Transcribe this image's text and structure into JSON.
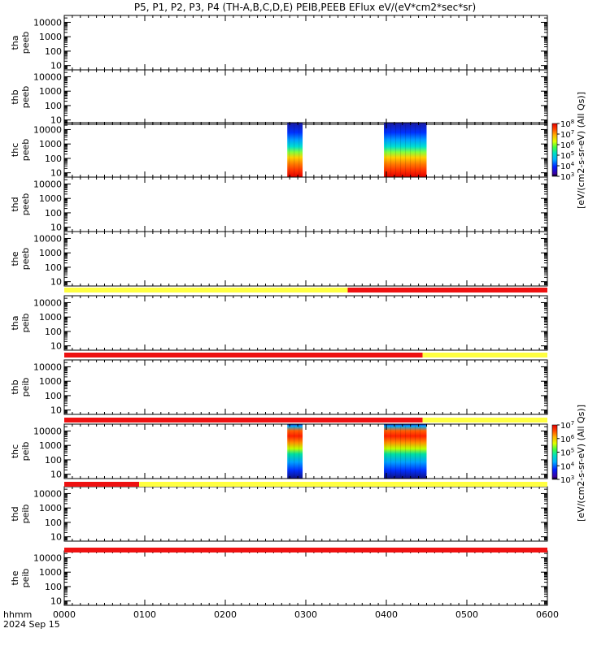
{
  "chart_data": {
    "type": "heatmap",
    "title": "P5, P1, P2, P3, P4 (TH-A,B,C,D,E) PEIB,PEEB EFlux eV/(eV*cm2*sec*sr)",
    "x": {
      "label_line1": "hhmm",
      "label_line2": "2024 Sep 15",
      "ticks": [
        "0000",
        "0100",
        "0200",
        "0300",
        "0400",
        "0500",
        "0600"
      ],
      "range_hours": [
        0,
        6
      ]
    },
    "y": {
      "scale": "log",
      "range_eV": [
        5,
        30000
      ],
      "ticks": [
        "10",
        "100",
        "1000",
        "10000"
      ]
    },
    "panels": [
      {
        "label1": "tha",
        "label2": "peeb",
        "coverage": []
      },
      {
        "label1": "thb",
        "label2": "peeb",
        "coverage": []
      },
      {
        "label1": "thc",
        "label2": "peeb",
        "coverage": [
          [
            2.77,
            2.96
          ],
          [
            3.97,
            4.5
          ]
        ],
        "spectrum": "electron"
      },
      {
        "label1": "thd",
        "label2": "peeb",
        "coverage": []
      },
      {
        "label1": "the",
        "label2": "peeb",
        "coverage": []
      },
      {
        "label1": "tha",
        "label2": "peib",
        "coverage": []
      },
      {
        "label1": "thb",
        "label2": "peib",
        "coverage": []
      },
      {
        "label1": "thc",
        "label2": "peib",
        "coverage": [
          [
            2.77,
            2.96
          ],
          [
            3.97,
            4.5
          ]
        ],
        "spectrum": "ion"
      },
      {
        "label1": "thd",
        "label2": "peib",
        "coverage": []
      },
      {
        "label1": "the",
        "label2": "peib",
        "coverage": []
      }
    ],
    "mode_bars": [
      {
        "segments": [
          {
            "from": 0,
            "to": 3.52,
            "color": "#ffff40"
          },
          {
            "from": 3.52,
            "to": 6,
            "color": "#ee1111"
          }
        ]
      },
      {
        "segments": [
          {
            "from": 0,
            "to": 4.45,
            "color": "#ee1111"
          },
          {
            "from": 4.45,
            "to": 6,
            "color": "#ffff40"
          }
        ]
      },
      {
        "segments": [
          {
            "from": 0,
            "to": 4.45,
            "color": "#ee1111"
          },
          {
            "from": 4.45,
            "to": 6,
            "color": "#ffff40"
          }
        ]
      },
      {
        "segments": [
          {
            "from": 0,
            "to": 0.93,
            "color": "#ee1111"
          },
          {
            "from": 0.93,
            "to": 6,
            "color": "#ffff40"
          }
        ]
      },
      {
        "segments": [
          {
            "from": 0,
            "to": 6,
            "color": "#ee1111"
          }
        ]
      }
    ],
    "colorbars": [
      {
        "title": "[eV/(cm2-s-sr-eV) (All Qs)]",
        "exponents": [
          "3",
          "4",
          "5",
          "6",
          "7",
          "8"
        ]
      },
      {
        "title": "[eV/(cm2-s-sr-eV) (All Qs)]",
        "exponents": [
          "3",
          "4",
          "5",
          "6",
          "7"
        ]
      }
    ],
    "colors": {
      "yellow": "#ffff40",
      "red": "#ee1111"
    }
  }
}
